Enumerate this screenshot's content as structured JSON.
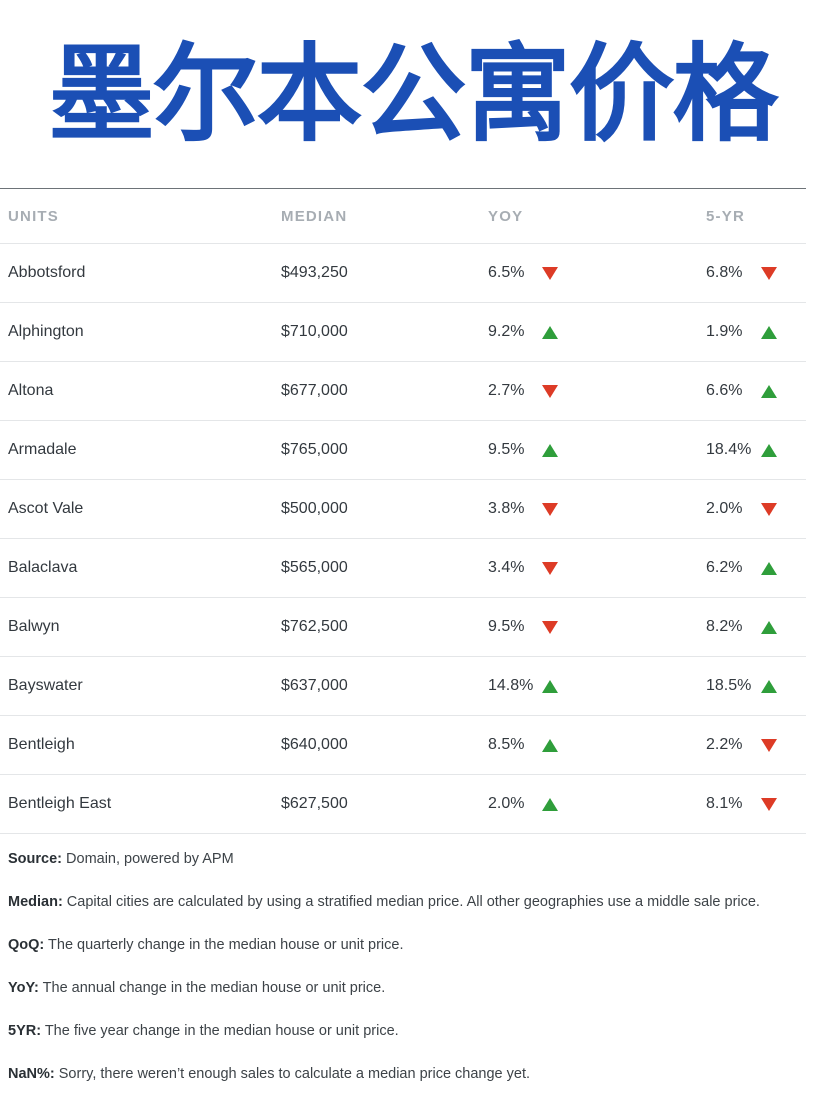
{
  "title": "墨尔本公寓价格",
  "colors": {
    "title": "#1b4fb5",
    "up": "#2f9e3b",
    "down": "#dd3b26"
  },
  "table": {
    "headers": {
      "name": "UNITS",
      "median": "MEDIAN",
      "yoy": "YOY",
      "five_yr": "5-YR"
    },
    "rows": [
      {
        "name": "Abbotsford",
        "median": "$493,250",
        "yoy": "6.5%",
        "yoy_dir": "down",
        "five_yr": "6.8%",
        "five_yr_dir": "down"
      },
      {
        "name": "Alphington",
        "median": "$710,000",
        "yoy": "9.2%",
        "yoy_dir": "up",
        "five_yr": "1.9%",
        "five_yr_dir": "up"
      },
      {
        "name": "Altona",
        "median": "$677,000",
        "yoy": "2.7%",
        "yoy_dir": "down",
        "five_yr": "6.6%",
        "five_yr_dir": "up"
      },
      {
        "name": "Armadale",
        "median": "$765,000",
        "yoy": "9.5%",
        "yoy_dir": "up",
        "five_yr": "18.4%",
        "five_yr_dir": "up"
      },
      {
        "name": "Ascot Vale",
        "median": "$500,000",
        "yoy": "3.8%",
        "yoy_dir": "down",
        "five_yr": "2.0%",
        "five_yr_dir": "down"
      },
      {
        "name": "Balaclava",
        "median": "$565,000",
        "yoy": "3.4%",
        "yoy_dir": "down",
        "five_yr": "6.2%",
        "five_yr_dir": "up"
      },
      {
        "name": "Balwyn",
        "median": "$762,500",
        "yoy": "9.5%",
        "yoy_dir": "down",
        "five_yr": "8.2%",
        "five_yr_dir": "up"
      },
      {
        "name": "Bayswater",
        "median": "$637,000",
        "yoy": "14.8%",
        "yoy_dir": "up",
        "five_yr": "18.5%",
        "five_yr_dir": "up"
      },
      {
        "name": "Bentleigh",
        "median": "$640,000",
        "yoy": "8.5%",
        "yoy_dir": "up",
        "five_yr": "2.2%",
        "five_yr_dir": "down"
      },
      {
        "name": "Bentleigh East",
        "median": "$627,500",
        "yoy": "2.0%",
        "yoy_dir": "up",
        "five_yr": "8.1%",
        "five_yr_dir": "down"
      }
    ]
  },
  "notes": [
    {
      "label": "Source:",
      "text": " Domain, powered by APM"
    },
    {
      "label": "Median:",
      "text": " Capital cities are calculated by using a stratified median price. All other geographies use a middle sale price."
    },
    {
      "label": "QoQ:",
      "text": " The quarterly change in the median house or unit price."
    },
    {
      "label": "YoY:",
      "text": " The annual change in the median house or unit price."
    },
    {
      "label": "5YR:",
      "text": " The five year change in the median house or unit price."
    },
    {
      "label": "NaN%:",
      "text": " Sorry, there weren’t enough sales to calculate a median price change yet."
    }
  ]
}
